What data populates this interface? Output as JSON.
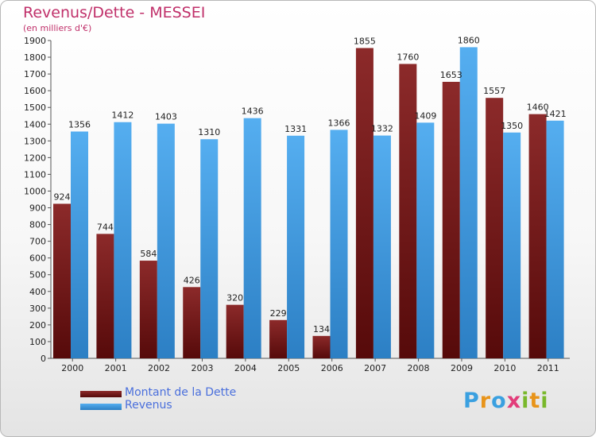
{
  "chart_data": {
    "type": "bar",
    "title": "Revenus/Dette - MESSEI",
    "subtitle": "(en milliers d'€)",
    "categories": [
      "2000",
      "2001",
      "2002",
      "2003",
      "2004",
      "2005",
      "2006",
      "2007",
      "2008",
      "2009",
      "2010",
      "2011"
    ],
    "series": [
      {
        "name": "Montant de la Dette",
        "color": "#7a1c1c",
        "values": [
          924,
          744,
          584,
          426,
          320,
          229,
          134,
          1855,
          1760,
          1653,
          1557,
          1460
        ]
      },
      {
        "name": "Revenus",
        "color": "#3e97df",
        "values": [
          1356,
          1412,
          1403,
          1310,
          1436,
          1331,
          1366,
          1332,
          1409,
          1860,
          1350,
          1421
        ]
      }
    ],
    "ylim": [
      0,
      1900
    ],
    "yticks": [
      0,
      100,
      200,
      300,
      400,
      500,
      600,
      700,
      800,
      900,
      1000,
      1100,
      1200,
      1300,
      1400,
      1500,
      1600,
      1700,
      1800,
      1900
    ],
    "grid": false,
    "legend_position": "bottom-left"
  },
  "logo": {
    "letters": [
      {
        "char": "P",
        "color": "#3aa0e0"
      },
      {
        "char": "r",
        "color": "#e8941a"
      },
      {
        "char": "o",
        "color": "#3aa0e0"
      },
      {
        "char": "x",
        "color": "#e23c7a"
      },
      {
        "char": "i",
        "color": "#79b82b"
      },
      {
        "char": "t",
        "color": "#e8941a"
      },
      {
        "char": "i",
        "color": "#79b82b"
      }
    ]
  }
}
